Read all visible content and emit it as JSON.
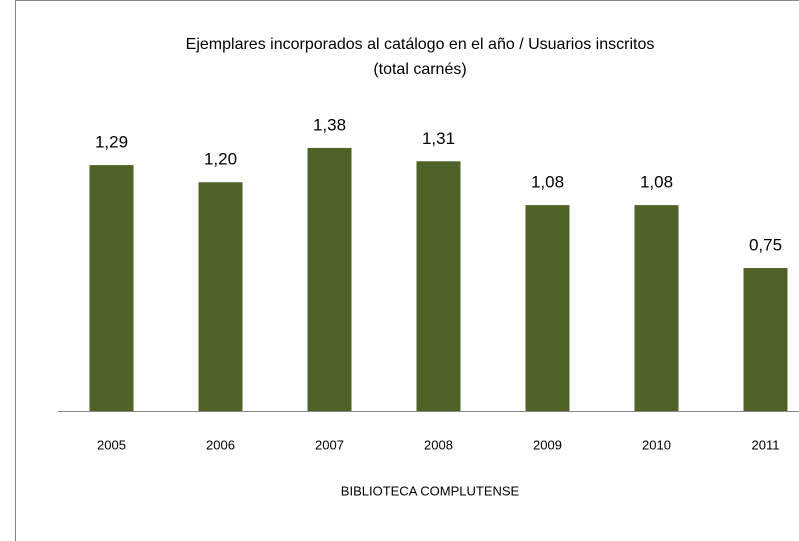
{
  "chart_data": {
    "type": "bar",
    "title": [
      "Ejemplares incorporados al catálogo en el año / Usuarios inscritos",
      "(total carnés)"
    ],
    "x_label": "BIBLIOTECA COMPLUTENSE",
    "categories": [
      "2005",
      "2006",
      "2007",
      "2008",
      "2009",
      "2010",
      "2011"
    ],
    "values": [
      1.29,
      1.2,
      1.38,
      1.31,
      1.08,
      1.08,
      0.75
    ],
    "value_labels": [
      "1,29",
      "1,20",
      "1,38",
      "1,31",
      "1,08",
      "1,08",
      "0,75"
    ],
    "color": "#4f6228",
    "ylim": [
      0,
      1.6
    ]
  }
}
